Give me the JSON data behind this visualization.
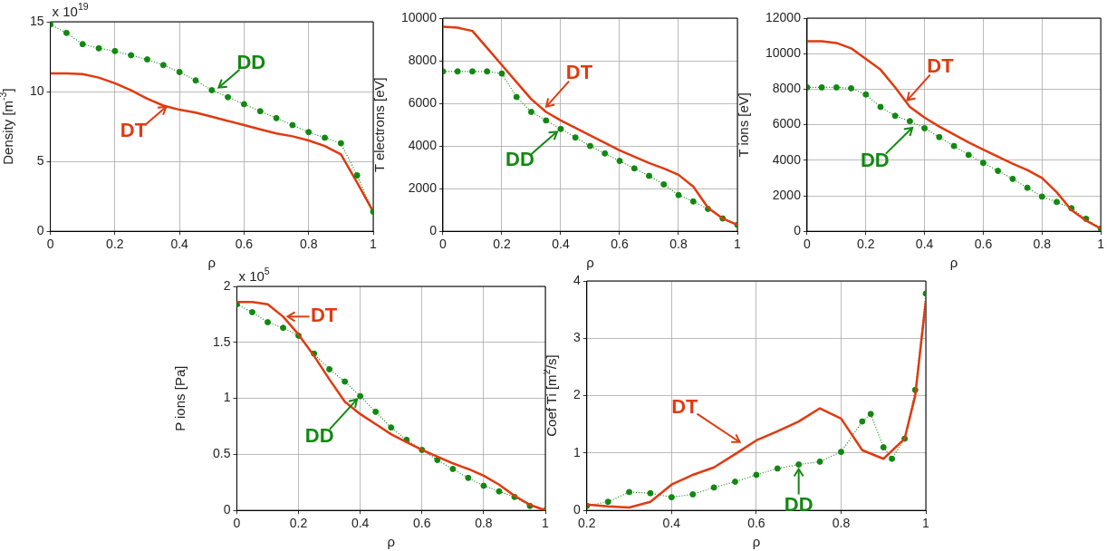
{
  "chart_data": [
    {
      "type": "line",
      "ylabel": "Density [m$^{-3}$]",
      "xlabel": "ρ",
      "xlim": [
        0,
        1
      ],
      "xticks": [
        0,
        0.2,
        0.4,
        0.6,
        0.8,
        1
      ],
      "ylim": [
        0,
        15
      ],
      "yticks": [
        0,
        5,
        10,
        15
      ],
      "grid": true,
      "legend": false,
      "x": [
        0,
        0.05,
        0.1,
        0.15,
        0.2,
        0.25,
        0.3,
        0.35,
        0.4,
        0.45,
        0.5,
        0.55,
        0.6,
        0.65,
        0.7,
        0.75,
        0.8,
        0.85,
        0.9,
        0.95,
        1
      ],
      "series": [
        {
          "color": "#118811",
          "marker": "circle",
          "line_style": "dotted",
          "values": [
            14.8,
            14.2,
            13.4,
            13.1,
            12.9,
            12.6,
            12.3,
            11.9,
            11.4,
            10.8,
            10.1,
            9.6,
            9.1,
            8.6,
            8.1,
            7.6,
            7.1,
            6.7,
            6.3,
            4.0,
            1.4
          ]
        },
        {
          "color": "#e03a10",
          "marker": "none",
          "line_style": "solid",
          "values": [
            11.3,
            11.3,
            11.25,
            11.0,
            10.6,
            10.1,
            9.5,
            9.0,
            8.7,
            8.5,
            8.2,
            7.9,
            7.6,
            7.3,
            7.0,
            6.8,
            6.5,
            6.1,
            5.5,
            3.5,
            1.4
          ]
        }
      ],
      "annotations": [
        "x 10$^{19}$",
        {
          "text": "DD",
          "x": 0.51,
          "y": 10.1
        },
        {
          "text": "DT",
          "x": 0.37,
          "y": 9.1
        }
      ]
    },
    {
      "type": "line",
      "ylabel": "T electrons [eV]",
      "xlabel": "ρ",
      "xlim": [
        0,
        1
      ],
      "xticks": [
        0,
        0.2,
        0.4,
        0.6,
        0.8,
        1
      ],
      "ylim": [
        0,
        10000
      ],
      "yticks": [
        0,
        2000,
        4000,
        6000,
        8000,
        10000
      ],
      "grid": true,
      "legend": false,
      "x": [
        0,
        0.05,
        0.1,
        0.15,
        0.2,
        0.25,
        0.3,
        0.35,
        0.4,
        0.45,
        0.5,
        0.55,
        0.6,
        0.65,
        0.7,
        0.75,
        0.8,
        0.85,
        0.9,
        0.95,
        1
      ],
      "series": [
        {
          "color": "#e03a10",
          "marker": "none",
          "line_style": "solid",
          "values": [
            9600,
            9550,
            9400,
            8600,
            7800,
            7000,
            6200,
            5600,
            5200,
            4850,
            4500,
            4150,
            3800,
            3500,
            3200,
            2950,
            2650,
            2100,
            1100,
            600,
            300
          ]
        },
        {
          "color": "#118811",
          "marker": "circle",
          "line_style": "dotted",
          "values": [
            7500,
            7500,
            7500,
            7500,
            7400,
            6300,
            5600,
            5200,
            4800,
            4400,
            4000,
            3650,
            3300,
            2950,
            2600,
            2200,
            1700,
            1400,
            1050,
            600,
            300
          ]
        }
      ],
      "annotations": [
        {
          "text": "DT",
          "x": 0.34,
          "y": 5700
        },
        {
          "text": "DD",
          "x": 0.4,
          "y": 4800
        }
      ]
    },
    {
      "type": "line",
      "ylabel": "T ions [eV]",
      "xlabel": "ρ",
      "xlim": [
        0,
        1
      ],
      "xticks": [
        0,
        0.2,
        0.4,
        0.6,
        0.8,
        1
      ],
      "ylim": [
        0,
        12000
      ],
      "yticks": [
        0,
        2000,
        4000,
        6000,
        8000,
        10000,
        12000
      ],
      "grid": true,
      "legend": false,
      "x": [
        0,
        0.05,
        0.1,
        0.15,
        0.2,
        0.25,
        0.3,
        0.35,
        0.4,
        0.45,
        0.5,
        0.55,
        0.6,
        0.65,
        0.7,
        0.75,
        0.8,
        0.85,
        0.9,
        0.95,
        1
      ],
      "series": [
        {
          "color": "#e03a10",
          "marker": "none",
          "line_style": "solid",
          "values": [
            10700,
            10700,
            10600,
            10300,
            9700,
            9100,
            8100,
            7000,
            6400,
            5900,
            5450,
            5000,
            4600,
            4200,
            3800,
            3450,
            3000,
            2200,
            1200,
            600,
            150
          ]
        },
        {
          "color": "#118811",
          "marker": "circle",
          "line_style": "dotted",
          "values": [
            8100,
            8100,
            8100,
            8050,
            7700,
            7000,
            6500,
            6200,
            5800,
            5300,
            4800,
            4300,
            3850,
            3400,
            2950,
            2450,
            1950,
            1650,
            1300,
            700,
            150
          ]
        }
      ],
      "annotations": [
        {
          "text": "DT",
          "x": 0.33,
          "y": 7200
        },
        {
          "text": "DD",
          "x": 0.37,
          "y": 6000
        }
      ]
    },
    {
      "type": "line",
      "ylabel": "P ions [Pa]",
      "xlabel": "ρ",
      "xlim": [
        0,
        1
      ],
      "xticks": [
        0,
        0.2,
        0.4,
        0.6,
        0.8,
        1
      ],
      "ylim": [
        0,
        2
      ],
      "yticks": [
        0,
        0.5,
        1,
        1.5,
        2
      ],
      "grid": true,
      "legend": false,
      "x": [
        0,
        0.05,
        0.1,
        0.15,
        0.2,
        0.25,
        0.3,
        0.35,
        0.4,
        0.45,
        0.5,
        0.55,
        0.6,
        0.65,
        0.7,
        0.75,
        0.8,
        0.85,
        0.9,
        0.95,
        1
      ],
      "series": [
        {
          "color": "#e03a10",
          "marker": "none",
          "line_style": "solid",
          "values": [
            1.86,
            1.86,
            1.84,
            1.73,
            1.57,
            1.38,
            1.17,
            0.97,
            0.86,
            0.77,
            0.68,
            0.61,
            0.54,
            0.48,
            0.42,
            0.37,
            0.31,
            0.23,
            0.13,
            0.05,
            0.0
          ]
        },
        {
          "color": "#118811",
          "marker": "circle",
          "line_style": "dotted",
          "values": [
            1.84,
            1.77,
            1.68,
            1.63,
            1.56,
            1.4,
            1.26,
            1.15,
            1.02,
            0.88,
            0.74,
            0.63,
            0.54,
            0.45,
            0.37,
            0.29,
            0.22,
            0.17,
            0.12,
            0.04,
            0.0
          ]
        }
      ],
      "annotations": [
        "x 10$^{5}$",
        {
          "text": "DT",
          "x": 0.15,
          "y": 1.73
        },
        {
          "text": "DD",
          "x": 0.4,
          "y": 1.02
        }
      ]
    },
    {
      "type": "line",
      "ylabel": "Coef Ti [m$^{2}$/s]",
      "xlabel": "ρ",
      "xlim": [
        0.2,
        1
      ],
      "xticks": [
        0.2,
        0.4,
        0.6,
        0.8,
        1
      ],
      "ylim": [
        0,
        4
      ],
      "yticks": [
        0,
        1,
        2,
        3,
        4
      ],
      "grid": true,
      "legend": false,
      "series": [
        {
          "color": "#e03a10",
          "marker": "none",
          "line_style": "solid",
          "x": [
            0.2,
            0.25,
            0.3,
            0.35,
            0.4,
            0.45,
            0.5,
            0.55,
            0.6,
            0.65,
            0.7,
            0.75,
            0.8,
            0.85,
            0.9,
            0.95,
            0.975,
            1
          ],
          "values": [
            0.1,
            0.07,
            0.05,
            0.15,
            0.45,
            0.62,
            0.75,
            0.98,
            1.22,
            1.38,
            1.55,
            1.78,
            1.6,
            1.05,
            0.9,
            1.25,
            2.0,
            3.65
          ]
        },
        {
          "color": "#118811",
          "marker": "circle",
          "line_style": "dotted",
          "x": [
            0.2,
            0.25,
            0.3,
            0.35,
            0.4,
            0.45,
            0.5,
            0.55,
            0.6,
            0.65,
            0.7,
            0.75,
            0.8,
            0.85,
            0.87,
            0.9,
            0.92,
            0.95,
            0.975,
            1
          ],
          "values": [
            0.08,
            0.15,
            0.32,
            0.3,
            0.23,
            0.28,
            0.4,
            0.5,
            0.62,
            0.73,
            0.8,
            0.85,
            1.02,
            1.55,
            1.68,
            1.1,
            0.9,
            1.25,
            2.1,
            3.78
          ]
        }
      ],
      "annotations": [
        {
          "text": "DT",
          "x": 0.57,
          "y": 1.15
        },
        {
          "text": "DD",
          "x": 0.7,
          "y": 0.8
        }
      ]
    }
  ]
}
